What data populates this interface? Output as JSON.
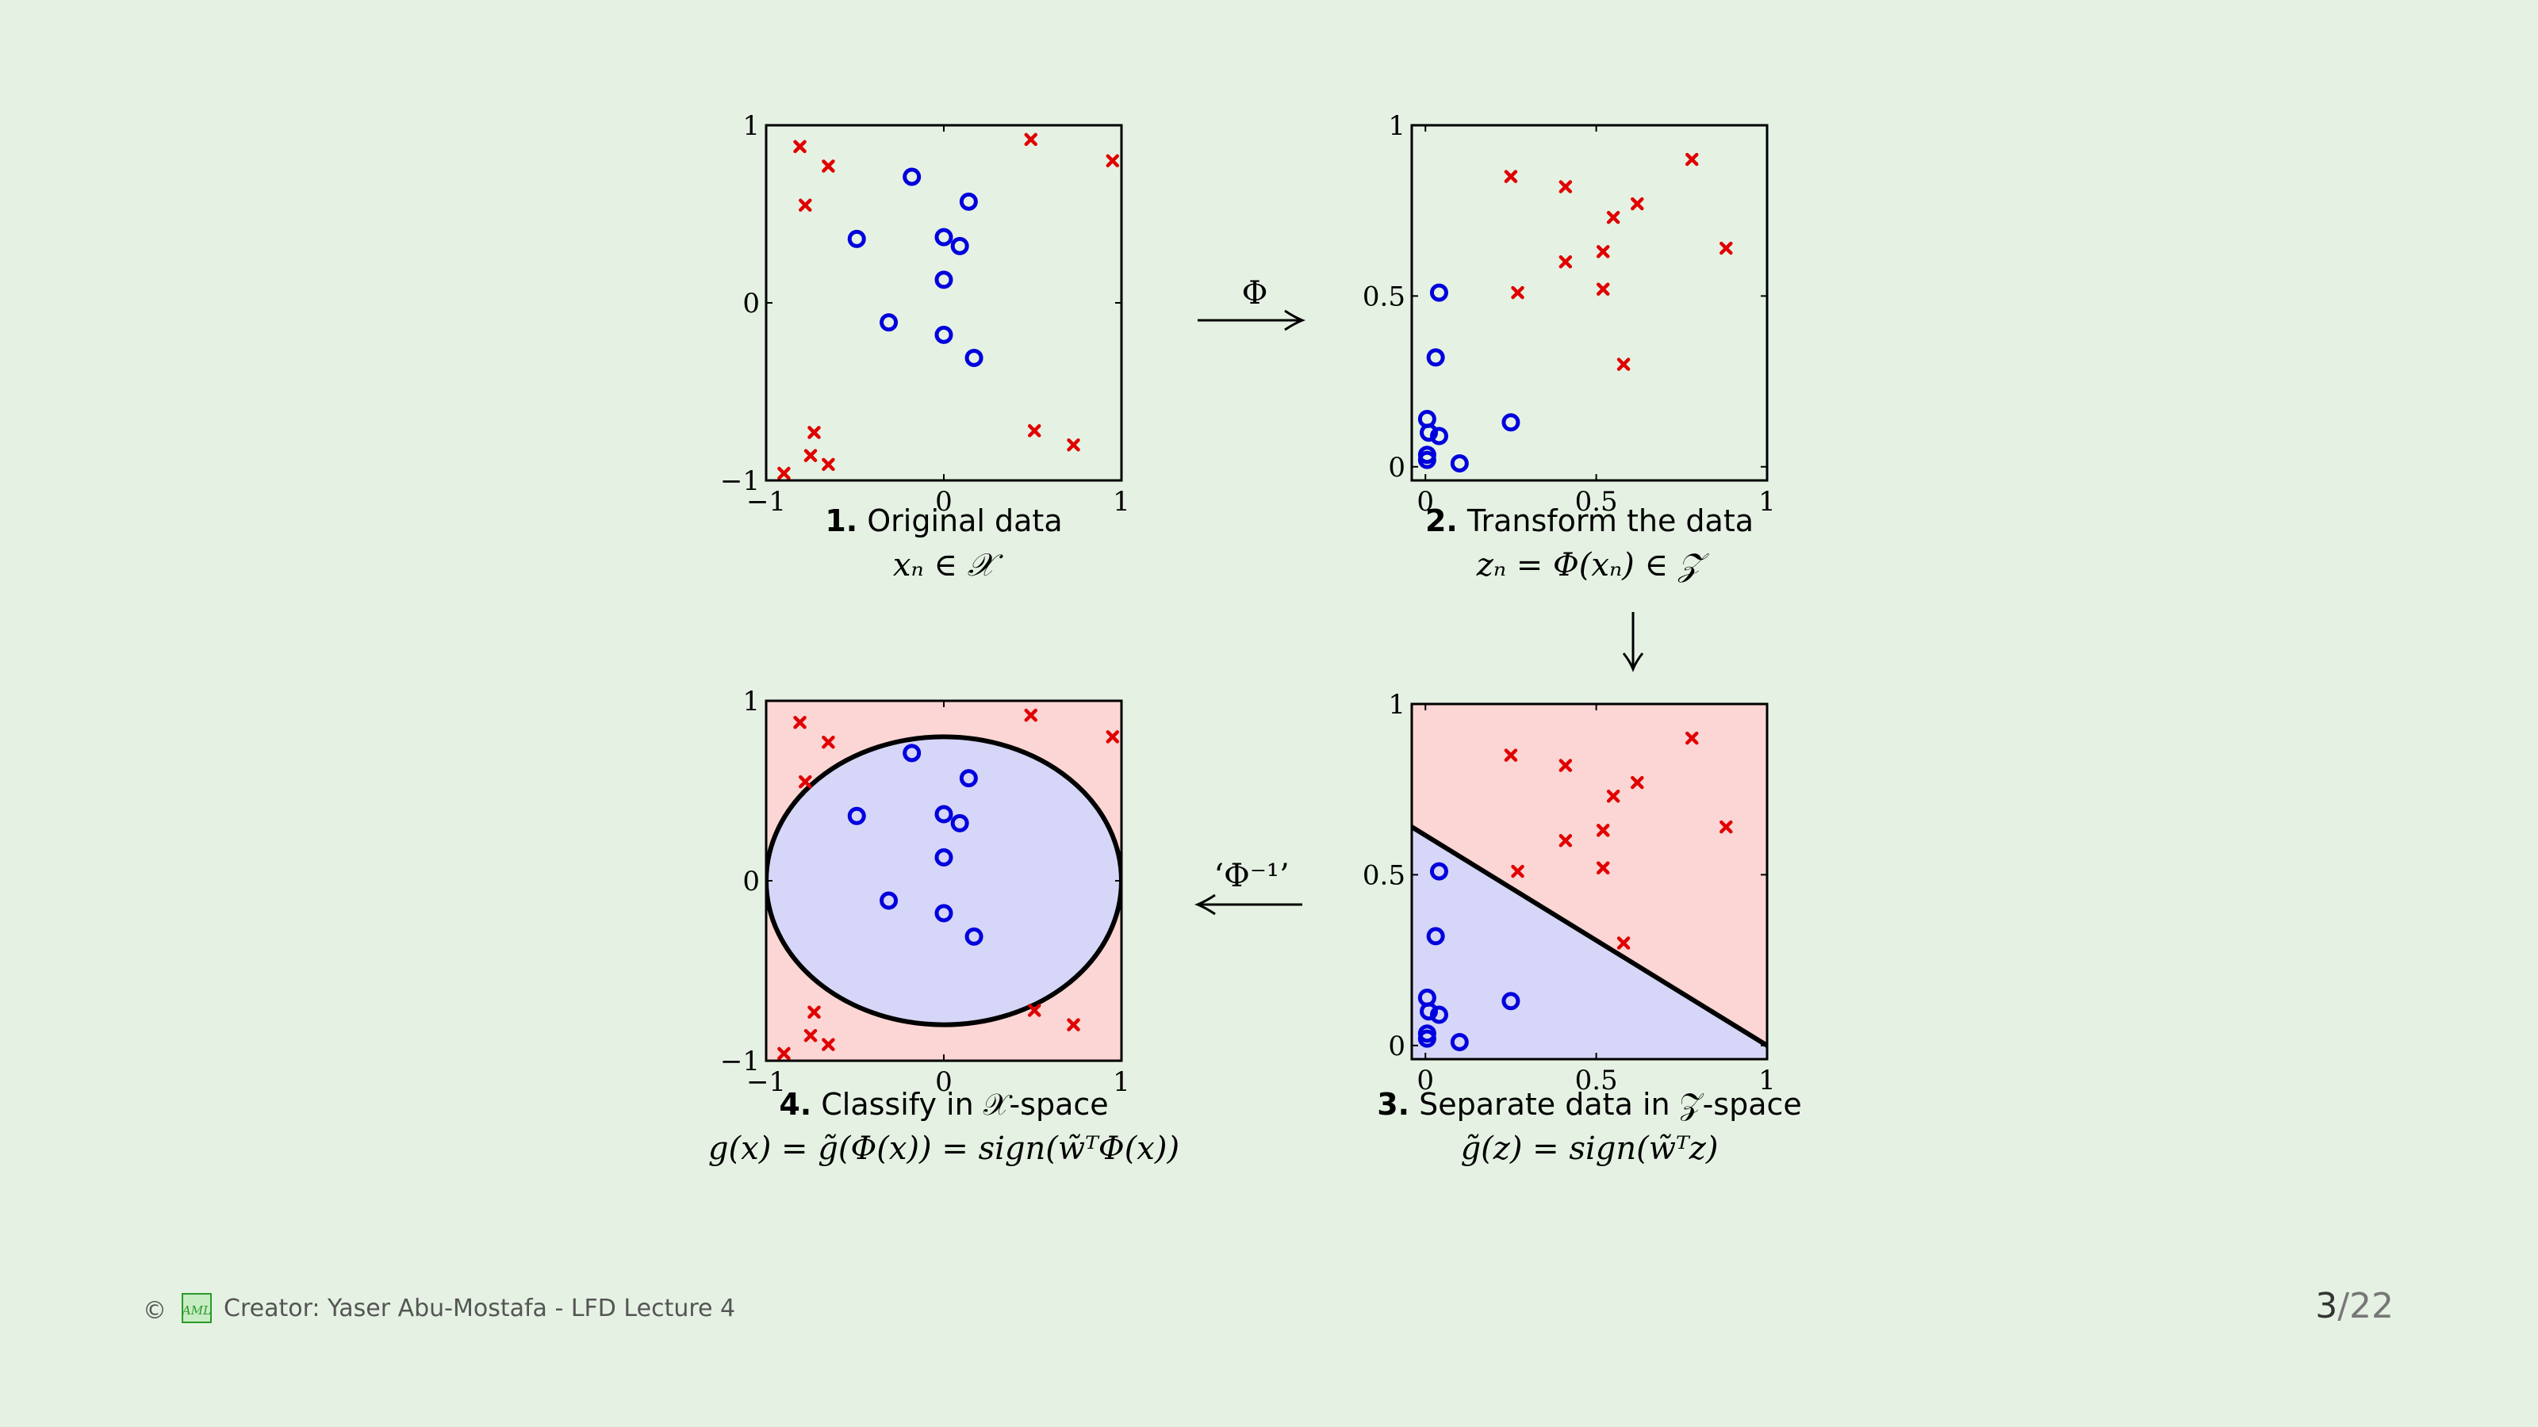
{
  "panels": [
    {
      "id": "p1",
      "number": "1.",
      "caption": "Original data",
      "formula": "xₙ ∈ 𝒳",
      "space": "x",
      "xticks": [
        "−1",
        "0",
        "1"
      ],
      "yticks": [
        "−1",
        "0",
        "1"
      ],
      "xlim": [
        -1,
        1
      ],
      "ylim": [
        -1,
        1
      ],
      "regions": "none"
    },
    {
      "id": "p2",
      "number": "2.",
      "caption": "Transform the data",
      "formula": "zₙ = Φ(xₙ) ∈ 𝒵",
      "space": "z",
      "xticks": [
        "0",
        "0.5",
        "1"
      ],
      "yticks": [
        "0",
        "0.5",
        "1"
      ],
      "xlim": [
        -0.04,
        1
      ],
      "ylim": [
        -0.04,
        1
      ],
      "regions": "none"
    },
    {
      "id": "p3",
      "number": "3.",
      "caption": "Separate data in 𝒵-space",
      "formula": "g̃(z) = sign(w̃ᵀz)",
      "space": "z",
      "xticks": [
        "0",
        "0.5",
        "1"
      ],
      "yticks": [
        "0",
        "0.5",
        "1"
      ],
      "xlim": [
        -0.04,
        1
      ],
      "ylim": [
        -0.04,
        1
      ],
      "regions": "line"
    },
    {
      "id": "p4",
      "number": "4.",
      "caption": "Classify in 𝒳-space",
      "formula": "g(x) = g̃(Φ(x)) = sign(w̃ᵀΦ(x))",
      "space": "x",
      "xticks": [
        "−1",
        "0",
        "1"
      ],
      "yticks": [
        "−1",
        "0",
        "1"
      ],
      "xlim": [
        -1,
        1
      ],
      "ylim": [
        -1,
        1
      ],
      "regions": "circle"
    }
  ],
  "arrows": {
    "phi": "Φ",
    "phi_inverse": "‘Φ⁻¹’"
  },
  "points_x": {
    "negative_circles": [
      [
        -0.18,
        0.71
      ],
      [
        0.14,
        0.57
      ],
      [
        -0.49,
        0.36
      ],
      [
        0.0,
        0.37
      ],
      [
        0.09,
        0.32
      ],
      [
        0.0,
        0.13
      ],
      [
        -0.31,
        -0.11
      ],
      [
        0.0,
        -0.18
      ],
      [
        0.17,
        -0.31
      ]
    ],
    "positive_crosses": [
      [
        -0.81,
        0.88
      ],
      [
        -0.65,
        0.77
      ],
      [
        -0.78,
        0.55
      ],
      [
        0.49,
        0.92
      ],
      [
        0.95,
        0.8
      ],
      [
        0.51,
        -0.72
      ],
      [
        0.73,
        -0.8
      ],
      [
        -0.73,
        -0.73
      ],
      [
        -0.75,
        -0.86
      ],
      [
        -0.65,
        -0.91
      ],
      [
        -0.9,
        -0.96
      ]
    ]
  },
  "points_z": {
    "negative_circles": [
      [
        0.04,
        0.51
      ],
      [
        0.03,
        0.32
      ],
      [
        0.25,
        0.13
      ],
      [
        0.005,
        0.14
      ],
      [
        0.01,
        0.1
      ],
      [
        0.04,
        0.09
      ],
      [
        0.005,
        0.035
      ],
      [
        0.005,
        0.02
      ],
      [
        0.1,
        0.01
      ]
    ],
    "positive_crosses": [
      [
        0.25,
        0.85
      ],
      [
        0.41,
        0.82
      ],
      [
        0.78,
        0.9
      ],
      [
        0.55,
        0.73
      ],
      [
        0.62,
        0.77
      ],
      [
        0.52,
        0.63
      ],
      [
        0.41,
        0.6
      ],
      [
        0.88,
        0.64
      ],
      [
        0.27,
        0.51
      ],
      [
        0.52,
        0.52
      ],
      [
        0.58,
        0.3
      ]
    ]
  },
  "boundary_line_z": [
    [
      -0.04,
      0.64
    ],
    [
      1.0,
      0.0
    ]
  ],
  "boundary_circle_x": {
    "cx": 0.0,
    "cy": 0.0,
    "rx": 1.0,
    "ry": 0.8
  },
  "colors": {
    "background": "#e5f2e3",
    "circle_class": "#0000dd",
    "cross_class": "#e00000",
    "region_circle": "#d6d6f8",
    "region_cross": "#fbd6d4",
    "logo_green": "#2a9a2a"
  },
  "footer": {
    "copyright": "©",
    "logo": "AML",
    "text": "Creator: Yaser Abu-Mostafa - LFD Lecture 4",
    "page_current": "3",
    "page_total": "/22"
  }
}
